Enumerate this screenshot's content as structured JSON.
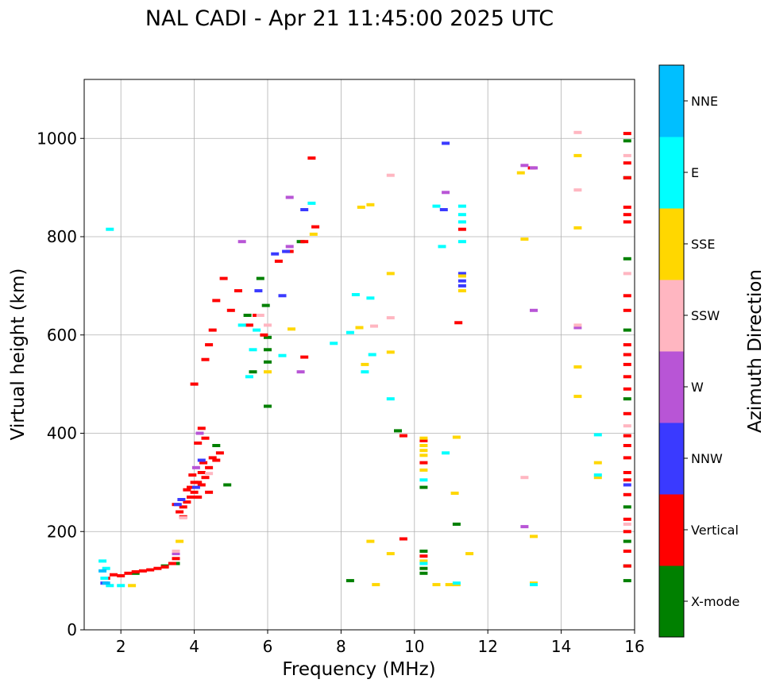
{
  "chart_data": {
    "type": "scatter",
    "title": "NAL CADI - Apr 21 11:45:00 2025 UTC",
    "xlabel": "Frequency (MHz)",
    "ylabel": "Virtual height (km)",
    "xlim": [
      1,
      16
    ],
    "ylim": [
      0,
      1120
    ],
    "xticks": [
      2,
      4,
      6,
      8,
      10,
      12,
      14,
      16
    ],
    "yticks": [
      0,
      200,
      400,
      600,
      800,
      1000
    ],
    "grid": true,
    "colorbar": {
      "label": "Azimuth Direction",
      "categories": [
        {
          "name": "X-mode",
          "color": "#008000"
        },
        {
          "name": "Vertical",
          "color": "#ff0000"
        },
        {
          "name": "NNW",
          "color": "#3a3aff"
        },
        {
          "name": "W",
          "color": "#b855d6"
        },
        {
          "name": "SSW",
          "color": "#ffb6c1"
        },
        {
          "name": "SSE",
          "color": "#ffd700"
        },
        {
          "name": "E",
          "color": "#00ffff"
        },
        {
          "name": "NNE",
          "color": "#00bfff"
        }
      ]
    },
    "series": [
      {
        "name": "X-mode",
        "points": [
          [
            8.25,
            100
          ],
          [
            9.55,
            405
          ],
          [
            10.25,
            115
          ],
          [
            10.25,
            125
          ],
          [
            10.25,
            160
          ],
          [
            10.25,
            290
          ],
          [
            11.15,
            215
          ],
          [
            6.0,
            595
          ],
          [
            6.0,
            570
          ],
          [
            6.0,
            545
          ],
          [
            5.95,
            660
          ],
          [
            5.45,
            640
          ],
          [
            5.6,
            525
          ],
          [
            6.0,
            455
          ],
          [
            6.9,
            790
          ],
          [
            15.8,
            100
          ],
          [
            15.8,
            130
          ],
          [
            15.8,
            180
          ],
          [
            15.8,
            250
          ],
          [
            15.8,
            470
          ],
          [
            15.8,
            610
          ],
          [
            15.8,
            755
          ],
          [
            15.8,
            920
          ],
          [
            15.8,
            995
          ],
          [
            3.5,
            135
          ],
          [
            3.2,
            130
          ],
          [
            4.9,
            295
          ],
          [
            5.8,
            715
          ],
          [
            4.6,
            375
          ],
          [
            2.4,
            115
          ]
        ]
      },
      {
        "name": "Vertical",
        "points": [
          [
            3.6,
            240
          ],
          [
            3.7,
            250
          ],
          [
            3.8,
            260
          ],
          [
            3.9,
            270
          ],
          [
            3.7,
            230
          ],
          [
            3.5,
            255
          ],
          [
            4.0,
            280
          ],
          [
            4.1,
            300
          ],
          [
            4.2,
            320
          ],
          [
            4.3,
            310
          ],
          [
            4.0,
            300
          ],
          [
            3.9,
            290
          ],
          [
            4.2,
            295
          ],
          [
            4.4,
            330
          ],
          [
            4.5,
            350
          ],
          [
            4.6,
            345
          ],
          [
            4.2,
            410
          ],
          [
            4.1,
            380
          ],
          [
            4.3,
            390
          ],
          [
            3.8,
            285
          ],
          [
            4.1,
            270
          ],
          [
            3.95,
            315
          ],
          [
            4.25,
            340
          ],
          [
            4.7,
            360
          ],
          [
            4.4,
            280
          ],
          [
            2.0,
            110
          ],
          [
            2.2,
            115
          ],
          [
            2.4,
            118
          ],
          [
            2.6,
            120
          ],
          [
            2.8,
            122
          ],
          [
            3.0,
            125
          ],
          [
            3.2,
            128
          ],
          [
            3.4,
            135
          ],
          [
            3.5,
            145
          ],
          [
            1.6,
            105
          ],
          [
            1.8,
            112
          ],
          [
            5.0,
            650
          ],
          [
            5.2,
            690
          ],
          [
            4.8,
            715
          ],
          [
            4.6,
            670
          ],
          [
            4.5,
            610
          ],
          [
            4.4,
            580
          ],
          [
            4.3,
            550
          ],
          [
            4.0,
            500
          ],
          [
            5.5,
            620
          ],
          [
            5.7,
            640
          ],
          [
            5.9,
            600
          ],
          [
            6.3,
            750
          ],
          [
            6.6,
            770
          ],
          [
            7.0,
            790
          ],
          [
            7.3,
            820
          ],
          [
            7.2,
            960
          ],
          [
            7.0,
            555
          ],
          [
            9.7,
            185
          ],
          [
            9.7,
            395
          ],
          [
            10.25,
            150
          ],
          [
            10.25,
            340
          ],
          [
            10.25,
            385
          ],
          [
            11.2,
            625
          ],
          [
            11.3,
            815
          ],
          [
            13.2,
            940
          ],
          [
            15.8,
            130
          ],
          [
            15.8,
            160
          ],
          [
            15.8,
            200
          ],
          [
            15.8,
            225
          ],
          [
            15.8,
            275
          ],
          [
            15.8,
            305
          ],
          [
            15.8,
            320
          ],
          [
            15.8,
            350
          ],
          [
            15.8,
            375
          ],
          [
            15.8,
            395
          ],
          [
            15.8,
            440
          ],
          [
            15.8,
            490
          ],
          [
            15.8,
            515
          ],
          [
            15.8,
            540
          ],
          [
            15.8,
            560
          ],
          [
            15.8,
            580
          ],
          [
            15.8,
            650
          ],
          [
            15.8,
            680
          ],
          [
            15.8,
            830
          ],
          [
            15.8,
            845
          ],
          [
            15.8,
            860
          ],
          [
            15.8,
            920
          ],
          [
            15.8,
            950
          ],
          [
            15.8,
            1010
          ]
        ]
      },
      {
        "name": "NNW",
        "points": [
          [
            3.55,
            255
          ],
          [
            3.65,
            265
          ],
          [
            4.05,
            290
          ],
          [
            4.2,
            345
          ],
          [
            5.75,
            690
          ],
          [
            6.4,
            680
          ],
          [
            6.5,
            770
          ],
          [
            10.85,
            990
          ],
          [
            11.3,
            700
          ],
          [
            11.3,
            710
          ],
          [
            11.3,
            725
          ],
          [
            15.8,
            295
          ],
          [
            1.55,
            95
          ],
          [
            6.2,
            765
          ],
          [
            10.8,
            855
          ],
          [
            7.0,
            855
          ]
        ]
      },
      {
        "name": "W",
        "points": [
          [
            4.05,
            330
          ],
          [
            4.15,
            400
          ],
          [
            3.5,
            155
          ],
          [
            6.9,
            525
          ],
          [
            6.6,
            880
          ],
          [
            13.0,
            210
          ],
          [
            13.25,
            650
          ],
          [
            13.0,
            945
          ],
          [
            13.25,
            940
          ],
          [
            14.45,
            615
          ],
          [
            10.85,
            890
          ],
          [
            5.3,
            790
          ],
          [
            6.6,
            780
          ]
        ]
      },
      {
        "name": "SSW",
        "points": [
          [
            3.7,
            228
          ],
          [
            3.5,
            160
          ],
          [
            4.4,
            318
          ],
          [
            8.9,
            618
          ],
          [
            9.35,
            635
          ],
          [
            9.35,
            925
          ],
          [
            13.0,
            310
          ],
          [
            14.45,
            620
          ],
          [
            14.45,
            1012
          ],
          [
            14.45,
            895
          ],
          [
            15.8,
            725
          ],
          [
            15.8,
            965
          ],
          [
            15.8,
            415
          ],
          [
            15.8,
            215
          ],
          [
            6.0,
            620
          ],
          [
            5.8,
            640
          ]
        ]
      },
      {
        "name": "SSE",
        "points": [
          [
            8.55,
            860
          ],
          [
            8.8,
            865
          ],
          [
            8.95,
            92
          ],
          [
            8.8,
            180
          ],
          [
            9.35,
            155
          ],
          [
            9.35,
            565
          ],
          [
            9.35,
            725
          ],
          [
            8.5,
            615
          ],
          [
            8.65,
            540
          ],
          [
            10.25,
            390
          ],
          [
            10.25,
            375
          ],
          [
            10.25,
            365
          ],
          [
            10.25,
            355
          ],
          [
            10.25,
            325
          ],
          [
            10.25,
            140
          ],
          [
            10.6,
            92
          ],
          [
            10.95,
            92
          ],
          [
            11.15,
            92
          ],
          [
            11.15,
            392
          ],
          [
            11.1,
            278
          ],
          [
            11.5,
            155
          ],
          [
            11.3,
            690
          ],
          [
            11.3,
            720
          ],
          [
            12.9,
            930
          ],
          [
            13.0,
            795
          ],
          [
            13.25,
            190
          ],
          [
            13.25,
            95
          ],
          [
            14.45,
            965
          ],
          [
            14.45,
            818
          ],
          [
            14.45,
            535
          ],
          [
            14.45,
            475
          ],
          [
            15.0,
            340
          ],
          [
            15.0,
            310
          ],
          [
            6.0,
            525
          ],
          [
            6.65,
            612
          ],
          [
            7.25,
            805
          ],
          [
            2.3,
            90
          ],
          [
            3.6,
            180
          ]
        ]
      },
      {
        "name": "E",
        "points": [
          [
            1.55,
            105
          ],
          [
            1.6,
            125
          ],
          [
            1.7,
            90
          ],
          [
            1.5,
            140
          ],
          [
            2.0,
            90
          ],
          [
            1.7,
            815
          ],
          [
            8.8,
            675
          ],
          [
            8.85,
            560
          ],
          [
            8.65,
            525
          ],
          [
            9.35,
            470
          ],
          [
            8.25,
            605
          ],
          [
            8.4,
            682
          ],
          [
            7.8,
            583
          ],
          [
            10.25,
            305
          ],
          [
            10.25,
            135
          ],
          [
            10.6,
            862
          ],
          [
            10.75,
            780
          ],
          [
            10.85,
            360
          ],
          [
            11.3,
            790
          ],
          [
            11.3,
            845
          ],
          [
            11.3,
            862
          ],
          [
            11.3,
            830
          ],
          [
            11.15,
            95
          ],
          [
            13.25,
            92
          ],
          [
            15.0,
            397
          ],
          [
            15.0,
            315
          ],
          [
            5.5,
            515
          ],
          [
            5.6,
            570
          ],
          [
            5.3,
            620
          ],
          [
            5.7,
            610
          ],
          [
            6.4,
            558
          ],
          [
            7.2,
            868
          ]
        ]
      },
      {
        "name": "NNE",
        "points": [
          [
            1.5,
            120
          ],
          [
            1.6,
            95
          ]
        ]
      }
    ]
  }
}
